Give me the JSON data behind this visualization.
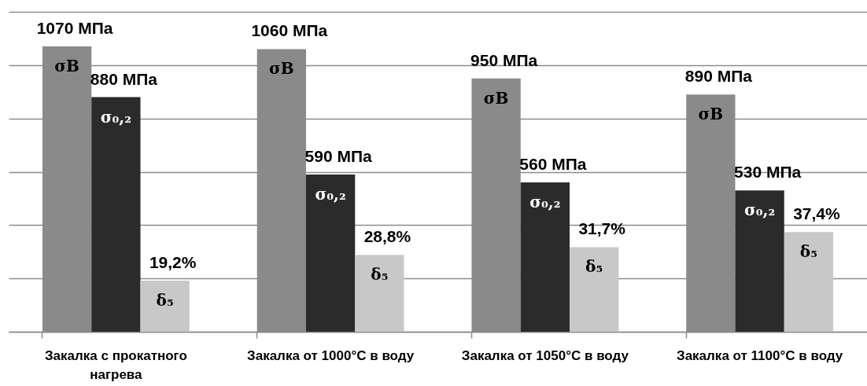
{
  "chart_data": {
    "type": "bar",
    "categories": [
      "Закалка с прокатного нагрева",
      "Закалка от 1000°C в воду",
      "Закалка от 1050°C в воду",
      "Закалка от 1100°C в воду"
    ],
    "series": [
      {
        "name": "σВ",
        "color": "#8a8a8a",
        "values": [
          1070,
          1060,
          950,
          890
        ],
        "value_labels": [
          "1070 МПа",
          "1060 МПа",
          "950 МПа",
          "890 МПа"
        ]
      },
      {
        "name": "σ₀,₂",
        "color": "#2b2b2b",
        "values": [
          880,
          590,
          560,
          530
        ],
        "value_labels": [
          "880 МПа",
          "590 МПа",
          "560 МПа",
          "530 МПа"
        ]
      },
      {
        "name": "δ₅",
        "color": "#c8c8c8",
        "values": [
          19.2,
          28.8,
          31.7,
          37.4
        ],
        "value_labels": [
          "19,2%",
          "28,8%",
          "31,7%",
          "37,4%"
        ],
        "axis": "y2"
      }
    ],
    "ylim": [
      0,
      1200
    ],
    "yticks": [
      {
        "value": 0,
        "label": null
      },
      {
        "value": 200,
        "label": null
      },
      {
        "value": 400,
        "label": null
      },
      {
        "value": 600,
        "label": null
      },
      {
        "value": 800,
        "label": null
      },
      {
        "value": 1000,
        "label": null
      },
      {
        "value": 1200,
        "label": null
      }
    ],
    "y2lim": [
      0,
      120
    ],
    "grid": "y",
    "tick_labels": "x"
  }
}
